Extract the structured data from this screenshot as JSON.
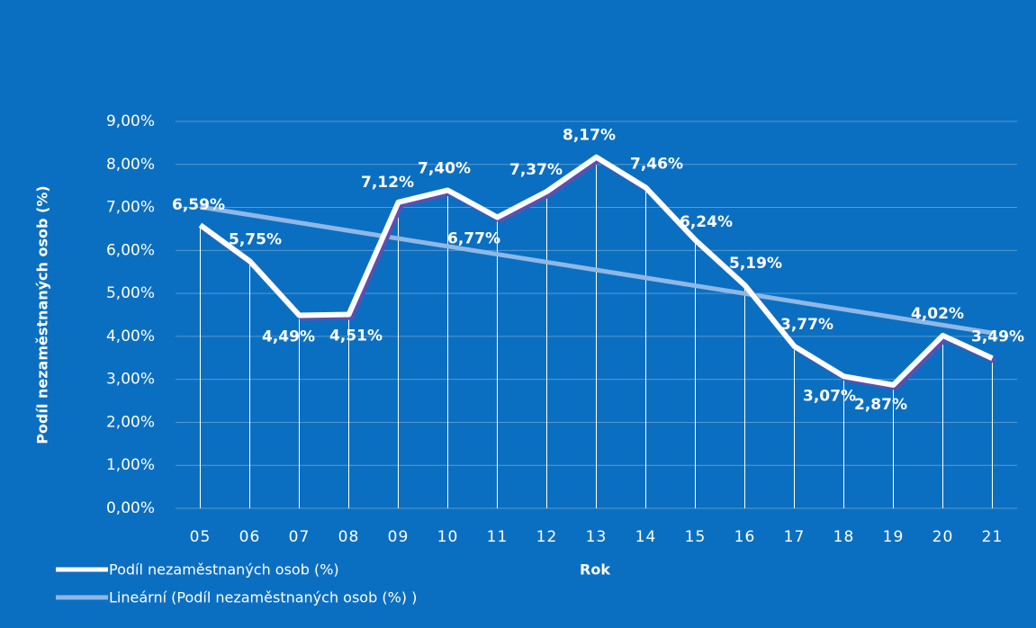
{
  "chart_data": {
    "type": "line",
    "categories": [
      "05",
      "06",
      "07",
      "08",
      "09",
      "10",
      "11",
      "12",
      "13",
      "14",
      "15",
      "16",
      "17",
      "18",
      "19",
      "20",
      "21"
    ],
    "series": [
      {
        "name": "Podíl nezaměstnaných osob (%)",
        "color": "#ffffff",
        "values": [
          6.59,
          5.75,
          4.49,
          4.51,
          7.12,
          7.4,
          6.77,
          7.37,
          8.17,
          7.46,
          6.24,
          5.19,
          3.77,
          3.07,
          2.87,
          4.02,
          3.49
        ],
        "value_labels": [
          "6,59%",
          "5,75%",
          "4,49%",
          "4,51%",
          "7,12%",
          "7,40%",
          "6,77%",
          "7,37%",
          "8,17%",
          "7,46%",
          "6,24%",
          "5,19%",
          "3,77%",
          "3,07%",
          "2,87%",
          "4,02%",
          "3,49%"
        ]
      }
    ],
    "trend": {
      "name": "Lineární (Podíl nezaměstnaných osob (%) )",
      "color": "#8fb8e6",
      "values": [
        7.01,
        4.08
      ]
    },
    "xlabel": "Rok",
    "ylabel": "Podíl nezaměstnaných osob (%)",
    "ylim": [
      0,
      9
    ],
    "yticks": [
      {
        "value": 0,
        "label": "0,00%"
      },
      {
        "value": 1,
        "label": "1,00%"
      },
      {
        "value": 2,
        "label": "2,00%"
      },
      {
        "value": 3,
        "label": "3,00%"
      },
      {
        "value": 4,
        "label": "4,00%"
      },
      {
        "value": 5,
        "label": "5,00%"
      },
      {
        "value": 6,
        "label": "6,00%"
      },
      {
        "value": 7,
        "label": "7,00%"
      },
      {
        "value": 8,
        "label": "8,00%"
      },
      {
        "value": 9,
        "label": "9,00%"
      }
    ],
    "grid": true
  }
}
